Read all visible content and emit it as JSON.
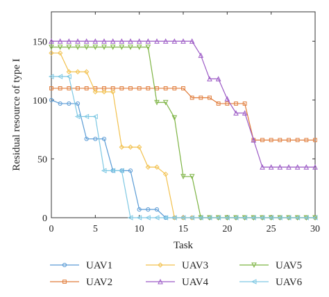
{
  "chart_data": {
    "type": "line",
    "xlabel": "Task",
    "ylabel": "Residual resource of type I",
    "xlim": [
      0,
      30
    ],
    "ylim": [
      0,
      175
    ],
    "xticks": [
      0,
      5,
      10,
      15,
      20,
      25,
      30
    ],
    "yticks": [
      0,
      50,
      100,
      150
    ],
    "grid": false,
    "legend_position": "bottom",
    "series": [
      {
        "name": "UAV1",
        "color": "#5a9bd5",
        "marker": "circle",
        "x": [
          0,
          1,
          2,
          3,
          4,
          5,
          6,
          7,
          8,
          9,
          10,
          11,
          12,
          13,
          14,
          15,
          16,
          17,
          18,
          19,
          20,
          21,
          22,
          23,
          24,
          25,
          26,
          27,
          28,
          29,
          30
        ],
        "y": [
          100,
          97,
          97,
          97,
          67,
          67,
          67,
          40,
          40,
          40,
          7,
          7,
          7,
          0,
          0,
          0,
          0,
          0,
          0,
          0,
          0,
          0,
          0,
          0,
          0,
          0,
          0,
          0,
          0,
          0,
          0
        ]
      },
      {
        "name": "UAV2",
        "color": "#e07b39",
        "marker": "square",
        "x": [
          0,
          1,
          2,
          3,
          4,
          5,
          6,
          7,
          8,
          9,
          10,
          11,
          12,
          13,
          14,
          15,
          16,
          17,
          18,
          19,
          20,
          21,
          22,
          23,
          24,
          25,
          26,
          27,
          28,
          29,
          30
        ],
        "y": [
          110,
          110,
          110,
          110,
          110,
          110,
          110,
          110,
          110,
          110,
          110,
          110,
          110,
          110,
          110,
          110,
          102,
          102,
          102,
          97,
          97,
          97,
          97,
          66,
          66,
          66,
          66,
          66,
          66,
          66,
          66
        ]
      },
      {
        "name": "UAV3",
        "color": "#f2c14e",
        "marker": "diamond",
        "x": [
          0,
          1,
          2,
          3,
          4,
          5,
          6,
          7,
          8,
          9,
          10,
          11,
          12,
          13,
          14,
          15,
          16,
          17,
          18,
          19,
          20,
          21,
          22,
          23,
          24,
          25,
          26,
          27,
          28,
          29,
          30
        ],
        "y": [
          140,
          140,
          124,
          124,
          124,
          107,
          107,
          107,
          60,
          60,
          60,
          43,
          43,
          37,
          0,
          0,
          0,
          0,
          0,
          0,
          0,
          0,
          0,
          0,
          0,
          0,
          0,
          0,
          0,
          0,
          0
        ]
      },
      {
        "name": "UAV4",
        "color": "#9b59c5",
        "marker": "triangle-up",
        "x": [
          0,
          1,
          2,
          3,
          4,
          5,
          6,
          7,
          8,
          9,
          10,
          11,
          12,
          13,
          14,
          15,
          16,
          17,
          18,
          19,
          20,
          21,
          22,
          23,
          24,
          25,
          26,
          27,
          28,
          29,
          30
        ],
        "y": [
          150,
          150,
          150,
          150,
          150,
          150,
          150,
          150,
          150,
          150,
          150,
          150,
          150,
          150,
          150,
          150,
          150,
          138,
          118,
          118,
          101,
          89,
          89,
          66,
          43,
          43,
          43,
          43,
          43,
          43,
          43
        ]
      },
      {
        "name": "UAV5",
        "color": "#7cb342",
        "marker": "triangle-down",
        "x": [
          0,
          1,
          2,
          3,
          4,
          5,
          6,
          7,
          8,
          9,
          10,
          11,
          12,
          13,
          14,
          15,
          16,
          17,
          18,
          19,
          20,
          21,
          22,
          23,
          24,
          25,
          26,
          27,
          28,
          29,
          30
        ],
        "y": [
          145,
          145,
          145,
          145,
          145,
          145,
          145,
          145,
          145,
          145,
          145,
          145,
          98,
          98,
          85,
          35,
          35,
          0,
          0,
          0,
          0,
          0,
          0,
          0,
          0,
          0,
          0,
          0,
          0,
          0,
          0
        ]
      },
      {
        "name": "UAV6",
        "color": "#7ec8e3",
        "marker": "triangle-left",
        "x": [
          0,
          1,
          2,
          3,
          4,
          5,
          6,
          7,
          8,
          9,
          10,
          11,
          12,
          13,
          14,
          15,
          16,
          17,
          18,
          19,
          20,
          21,
          22,
          23,
          24,
          25,
          26,
          27,
          28,
          29,
          30
        ],
        "y": [
          120,
          120,
          120,
          86,
          86,
          86,
          40,
          40,
          40,
          0,
          0,
          0,
          0,
          0,
          0,
          0,
          0,
          0,
          0,
          0,
          0,
          0,
          0,
          0,
          0,
          0,
          0,
          0,
          0,
          0,
          0
        ]
      }
    ]
  }
}
